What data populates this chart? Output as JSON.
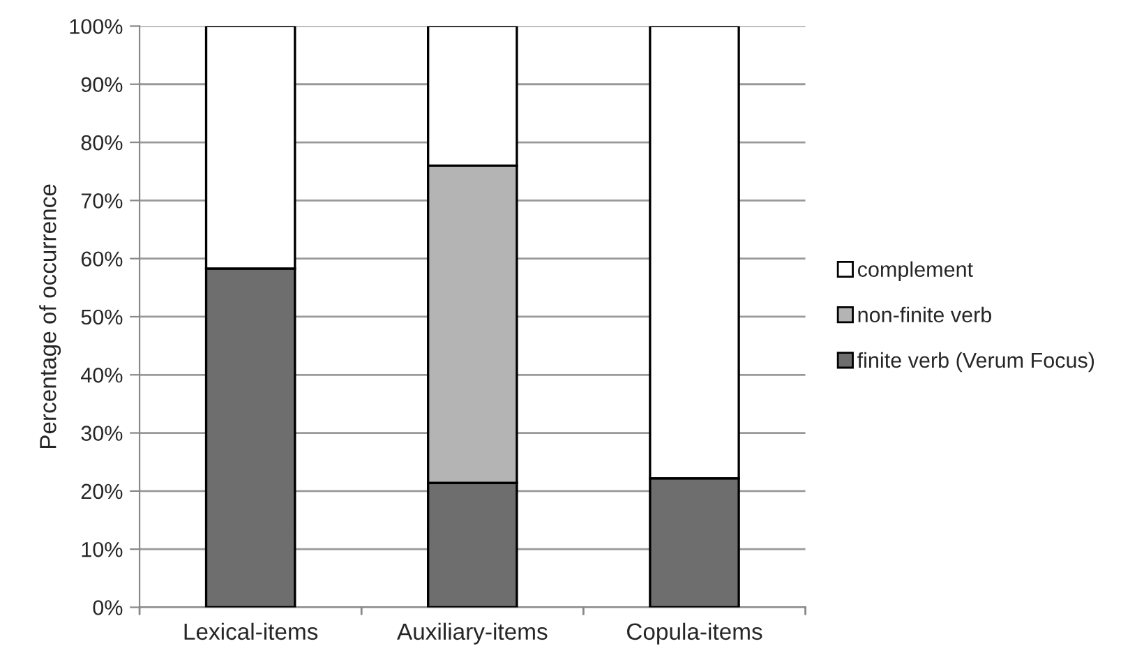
{
  "chart_data": {
    "type": "bar",
    "ylabel": "Percentage of occurrence",
    "categories": [
      "Lexical-items",
      "Auxiliary-items",
      "Copula-items"
    ],
    "stacked": true,
    "series": [
      {
        "name": "finite verb (Verum Focus)",
        "color": "#6e6e6e",
        "values": [
          58.3,
          21.4,
          22.2
        ]
      },
      {
        "name": "non-finite verb",
        "color": "#b4b4b4",
        "values": [
          0,
          54.6,
          0
        ]
      },
      {
        "name": "complement",
        "color": "#ffffff",
        "values": [
          41.7,
          24.0,
          77.8
        ]
      }
    ],
    "ylim": [
      0,
      100
    ],
    "yticks": [
      {
        "value": 0,
        "label": "0%"
      },
      {
        "value": 10,
        "label": "10%"
      },
      {
        "value": 20,
        "label": "20%"
      },
      {
        "value": 30,
        "label": "30%"
      },
      {
        "value": 40,
        "label": "40%"
      },
      {
        "value": 50,
        "label": "50%"
      },
      {
        "value": 60,
        "label": "60%"
      },
      {
        "value": 70,
        "label": "70%"
      },
      {
        "value": 80,
        "label": "80%"
      },
      {
        "value": 90,
        "label": "90%"
      },
      {
        "value": 100,
        "label": "100%"
      }
    ],
    "grid": "y",
    "legend": "right"
  }
}
